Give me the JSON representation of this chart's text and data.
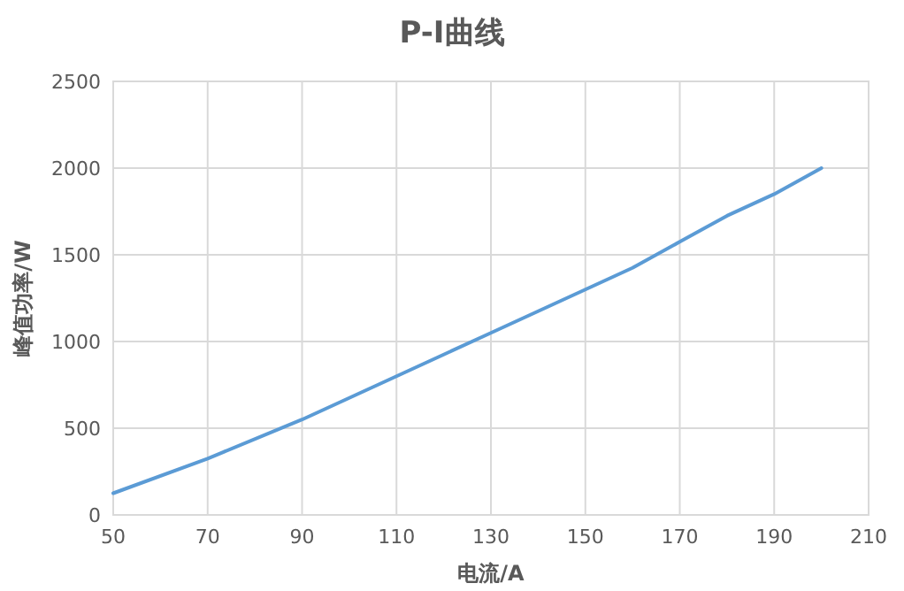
{
  "chart_data": {
    "type": "line",
    "title": "P-I曲线",
    "xlabel": "电流/A",
    "ylabel": "峰值功率/W",
    "x": [
      50,
      70,
      90,
      100,
      110,
      120,
      130,
      140,
      150,
      160,
      170,
      180,
      190,
      200
    ],
    "series": [
      {
        "color": "#5b9bd5",
        "values": [
          125,
          325,
          550,
          675,
          800,
          925,
          1050,
          1175,
          1300,
          1425,
          1575,
          1725,
          1850,
          2000
        ]
      }
    ],
    "xlim": [
      50,
      210
    ],
    "xticks": [
      50,
      70,
      90,
      110,
      130,
      150,
      170,
      190,
      210
    ],
    "ylim": [
      0,
      2500
    ],
    "yticks": [
      0,
      500,
      1000,
      1500,
      2000,
      2500
    ],
    "grid": true,
    "marker": "none",
    "line_style": "solid"
  }
}
